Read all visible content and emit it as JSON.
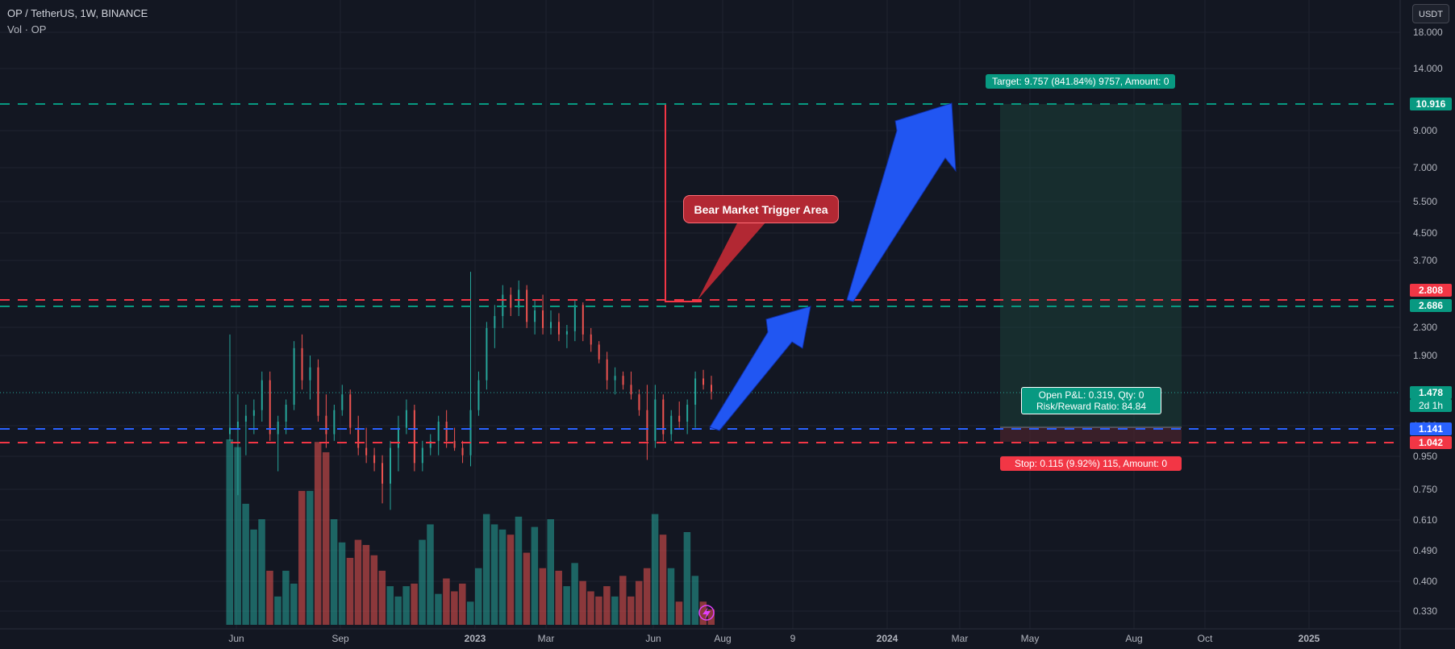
{
  "header": {
    "symbol_line": "OP / TetherUS, 1W, BINANCE",
    "volume_line": "Vol · OP"
  },
  "currency_button": "USDT",
  "colors": {
    "background": "#131722",
    "grid": "#1f2330",
    "up": "#26a69a",
    "down": "#ef5350",
    "target_line": "#089981",
    "stop_line": "#f23645",
    "entry_line": "#2962ff",
    "arrow": "#2156f2",
    "callout": "#b22833"
  },
  "price_axis": {
    "ticks": [
      "18.000",
      "14.000",
      "9.000",
      "7.000",
      "5.500",
      "4.500",
      "3.700",
      "2.300",
      "1.900",
      "1.300",
      "0.950",
      "0.750",
      "0.610",
      "0.490",
      "0.400",
      "0.330"
    ],
    "tags": {
      "target": "10.916",
      "stop_upper": "2.808",
      "target_upper": "2.686",
      "last_price": "1.478",
      "countdown": "2d 1h",
      "entry": "1.141",
      "stop": "1.042"
    }
  },
  "time_axis": {
    "labels": [
      "Jun",
      "Sep",
      "2023",
      "Mar",
      "Jun",
      "Aug",
      "9",
      "2024",
      "Mar",
      "May",
      "Aug",
      "Oct",
      "2025"
    ]
  },
  "position": {
    "target_label": "Target: 9.757 (841.84%) 9757, Amount: 0",
    "pnl_line1": "Open P&L: 0.319, Qty: 0",
    "pnl_line2": "Risk/Reward Ratio: 84.84",
    "stop_label": "Stop: 0.115 (9.92%) 115, Amount: 0"
  },
  "annotation": {
    "callout": "Bear Market Trigger Area"
  },
  "chart_data": {
    "type": "candlestick",
    "series": [
      {
        "o": 1.1,
        "h": 2.2,
        "l": 1.05,
        "c": 1.15
      },
      {
        "o": 1.15,
        "h": 1.45,
        "l": 0.72,
        "c": 1.2
      },
      {
        "o": 1.2,
        "h": 1.35,
        "l": 0.95,
        "c": 1.25
      },
      {
        "o": 1.25,
        "h": 1.4,
        "l": 1.1,
        "c": 1.3
      },
      {
        "o": 1.3,
        "h": 1.7,
        "l": 1.2,
        "c": 1.6
      },
      {
        "o": 1.6,
        "h": 1.7,
        "l": 1.05,
        "c": 1.1
      },
      {
        "o": 1.1,
        "h": 1.25,
        "l": 0.85,
        "c": 1.2
      },
      {
        "o": 1.2,
        "h": 1.4,
        "l": 1.1,
        "c": 1.35
      },
      {
        "o": 1.35,
        "h": 2.1,
        "l": 1.3,
        "c": 2.0
      },
      {
        "o": 2.0,
        "h": 2.2,
        "l": 1.5,
        "c": 1.6
      },
      {
        "o": 1.6,
        "h": 1.9,
        "l": 1.4,
        "c": 1.75
      },
      {
        "o": 1.75,
        "h": 1.85,
        "l": 1.2,
        "c": 1.25
      },
      {
        "o": 1.25,
        "h": 1.45,
        "l": 1.0,
        "c": 1.1
      },
      {
        "o": 1.1,
        "h": 1.35,
        "l": 1.05,
        "c": 1.3
      },
      {
        "o": 1.3,
        "h": 1.55,
        "l": 1.25,
        "c": 1.45
      },
      {
        "o": 1.45,
        "h": 1.5,
        "l": 1.1,
        "c": 1.15
      },
      {
        "o": 1.15,
        "h": 1.25,
        "l": 0.95,
        "c": 1.0
      },
      {
        "o": 1.0,
        "h": 1.15,
        "l": 0.9,
        "c": 0.95
      },
      {
        "o": 0.95,
        "h": 1.0,
        "l": 0.85,
        "c": 0.9
      },
      {
        "o": 0.9,
        "h": 0.95,
        "l": 0.68,
        "c": 0.78
      },
      {
        "o": 0.78,
        "h": 1.05,
        "l": 0.65,
        "c": 1.0
      },
      {
        "o": 1.0,
        "h": 1.25,
        "l": 0.85,
        "c": 1.15
      },
      {
        "o": 1.15,
        "h": 1.4,
        "l": 1.1,
        "c": 1.3
      },
      {
        "o": 1.3,
        "h": 1.35,
        "l": 0.85,
        "c": 0.9
      },
      {
        "o": 0.9,
        "h": 1.05,
        "l": 0.85,
        "c": 1.0
      },
      {
        "o": 1.0,
        "h": 1.1,
        "l": 0.95,
        "c": 1.05
      },
      {
        "o": 1.05,
        "h": 1.25,
        "l": 0.95,
        "c": 1.2
      },
      {
        "o": 1.2,
        "h": 1.3,
        "l": 1.0,
        "c": 1.05
      },
      {
        "o": 1.05,
        "h": 1.15,
        "l": 0.98,
        "c": 1.0
      },
      {
        "o": 1.0,
        "h": 1.05,
        "l": 0.9,
        "c": 0.95
      },
      {
        "o": 0.95,
        "h": 3.4,
        "l": 0.88,
        "c": 1.3
      },
      {
        "o": 1.3,
        "h": 1.7,
        "l": 1.25,
        "c": 1.6
      },
      {
        "o": 1.6,
        "h": 2.4,
        "l": 1.5,
        "c": 2.3
      },
      {
        "o": 2.3,
        "h": 2.7,
        "l": 2.0,
        "c": 2.5
      },
      {
        "o": 2.5,
        "h": 3.1,
        "l": 2.3,
        "c": 2.9
      },
      {
        "o": 2.9,
        "h": 3.05,
        "l": 2.5,
        "c": 2.65
      },
      {
        "o": 2.65,
        "h": 3.2,
        "l": 2.5,
        "c": 3.0
      },
      {
        "o": 3.0,
        "h": 3.1,
        "l": 2.3,
        "c": 2.4
      },
      {
        "o": 2.4,
        "h": 2.8,
        "l": 2.2,
        "c": 2.6
      },
      {
        "o": 2.6,
        "h": 2.9,
        "l": 2.2,
        "c": 2.3
      },
      {
        "o": 2.3,
        "h": 2.6,
        "l": 2.2,
        "c": 2.4
      },
      {
        "o": 2.4,
        "h": 2.55,
        "l": 2.1,
        "c": 2.2
      },
      {
        "o": 2.2,
        "h": 2.35,
        "l": 2.0,
        "c": 2.25
      },
      {
        "o": 2.25,
        "h": 2.8,
        "l": 2.1,
        "c": 2.7
      },
      {
        "o": 2.7,
        "h": 2.75,
        "l": 2.1,
        "c": 2.2
      },
      {
        "o": 2.2,
        "h": 2.3,
        "l": 1.95,
        "c": 2.05
      },
      {
        "o": 2.05,
        "h": 2.1,
        "l": 1.8,
        "c": 1.85
      },
      {
        "o": 1.85,
        "h": 1.95,
        "l": 1.5,
        "c": 1.6
      },
      {
        "o": 1.6,
        "h": 1.75,
        "l": 1.45,
        "c": 1.65
      },
      {
        "o": 1.65,
        "h": 1.7,
        "l": 1.5,
        "c": 1.55
      },
      {
        "o": 1.55,
        "h": 1.7,
        "l": 1.4,
        "c": 1.45
      },
      {
        "o": 1.45,
        "h": 1.5,
        "l": 1.25,
        "c": 1.3
      },
      {
        "o": 1.3,
        "h": 1.55,
        "l": 0.92,
        "c": 1.05
      },
      {
        "o": 1.05,
        "h": 1.55,
        "l": 1.0,
        "c": 1.4
      },
      {
        "o": 1.4,
        "h": 1.45,
        "l": 1.05,
        "c": 1.1
      },
      {
        "o": 1.1,
        "h": 1.3,
        "l": 1.05,
        "c": 1.25
      },
      {
        "o": 1.25,
        "h": 1.38,
        "l": 1.15,
        "c": 1.2
      },
      {
        "o": 1.2,
        "h": 1.4,
        "l": 1.1,
        "c": 1.35
      },
      {
        "o": 1.35,
        "h": 1.7,
        "l": 1.15,
        "c": 1.62
      },
      {
        "o": 1.62,
        "h": 1.72,
        "l": 1.5,
        "c": 1.55
      },
      {
        "o": 1.55,
        "h": 1.65,
        "l": 1.4,
        "c": 1.478
      }
    ],
    "volume_note": "relative weekly volume (unitless bars)",
    "volume": [
      0.72,
      0.69,
      0.47,
      0.37,
      0.41,
      0.21,
      0.11,
      0.21,
      0.16,
      0.52,
      0.52,
      0.71,
      0.67,
      0.41,
      0.32,
      0.26,
      0.33,
      0.31,
      0.27,
      0.21,
      0.15,
      0.11,
      0.15,
      0.16,
      0.33,
      0.39,
      0.12,
      0.18,
      0.13,
      0.16,
      0.09,
      0.22,
      0.43,
      0.39,
      0.37,
      0.35,
      0.42,
      0.28,
      0.38,
      0.22,
      0.41,
      0.21,
      0.15,
      0.24,
      0.17,
      0.13,
      0.11,
      0.15,
      0.11,
      0.19,
      0.11,
      0.17,
      0.22,
      0.43,
      0.35,
      0.22,
      0.09,
      0.36,
      0.19,
      0.09,
      0.06
    ]
  }
}
